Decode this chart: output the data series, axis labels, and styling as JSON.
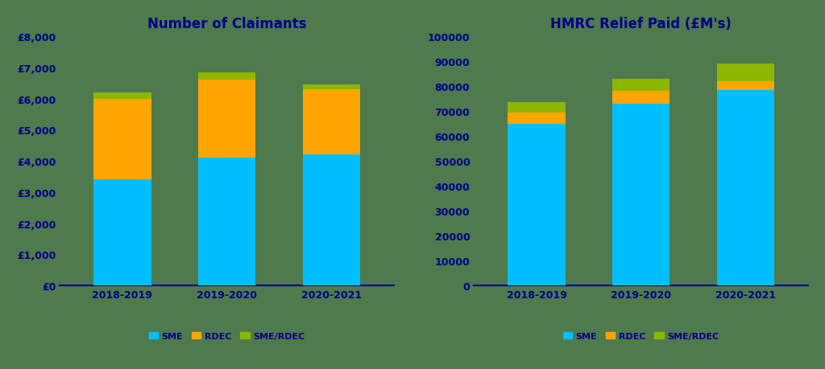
{
  "left_title": "Number of Claimants",
  "right_title": "HMRC Relief Paid (£M's)",
  "categories": [
    "2018-2019",
    "2019-2020",
    "2020-2021"
  ],
  "claimants": {
    "SME": [
      3400,
      4100,
      4200
    ],
    "RDEC": [
      2600,
      2500,
      2100
    ],
    "SME_RDEC": [
      200,
      250,
      155
    ]
  },
  "relief": {
    "SME": [
      65000,
      73000,
      78500
    ],
    "RDEC": [
      4500,
      5000,
      3500
    ],
    "SME_RDEC": [
      4000,
      5000,
      7000
    ]
  },
  "left_yticks": [
    0,
    1000,
    2000,
    3000,
    4000,
    5000,
    6000,
    7000,
    8000
  ],
  "left_yticklabels": [
    "£0",
    "£1,000",
    "£2,000",
    "£3,000",
    "£4,000",
    "£5,000",
    "£6,000",
    "£7,000",
    "£8,000"
  ],
  "right_yticks": [
    0,
    10000,
    20000,
    30000,
    40000,
    50000,
    60000,
    70000,
    80000,
    90000,
    100000
  ],
  "right_yticklabels": [
    "0",
    "10000",
    "20000",
    "30000",
    "40000",
    "50000",
    "60000",
    "70000",
    "80000",
    "90000",
    "100000"
  ],
  "color_sme": "#00BFFF",
  "color_rdec": "#FFA500",
  "color_sme_rdec": "#8DB600",
  "text_color": "#00008B",
  "axis_line_color": "#00008B",
  "bar_width": 0.55,
  "background_color": "#4E7A4E",
  "legend_fontsize": 8
}
